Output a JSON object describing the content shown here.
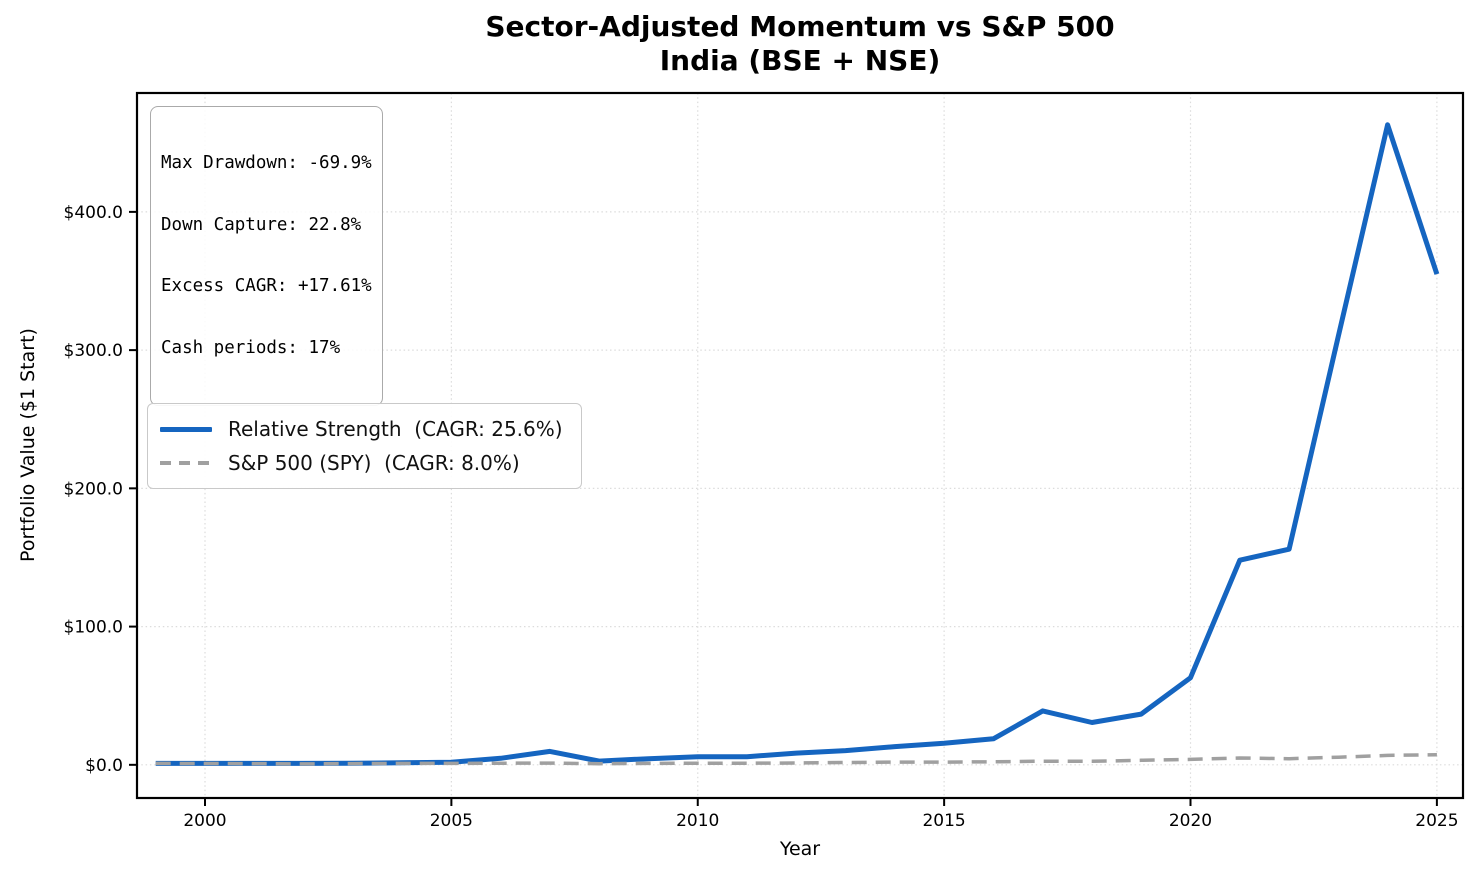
{
  "title": {
    "line1": "Sector-Adjusted Momentum vs S&P 500",
    "line2": "India (BSE + NSE)"
  },
  "colors": {
    "strategy_line": "#1565c0",
    "benchmark_line": "#a0a0a0",
    "gridline": "#dcdcdc",
    "background": "#ffffff"
  },
  "chart_data": {
    "type": "line",
    "title": "Sector-Adjusted Momentum vs S&P 500\nIndia (BSE + NSE)",
    "xlabel": "Year",
    "ylabel": "Portfolio Value ($1 Start)",
    "grid": "dotted",
    "legend_position": "center-left",
    "xlim": [
      1998.62,
      2025.53
    ],
    "ylim": [
      -24,
      486
    ],
    "xticks": [
      2000,
      2005,
      2010,
      2015,
      2020,
      2025
    ],
    "xtick_labels": [
      "2000",
      "2005",
      "2010",
      "2015",
      "2020",
      "2025"
    ],
    "yticks": [
      0,
      100,
      200,
      300,
      400
    ],
    "ytick_labels": [
      "$0.0",
      "$100.0",
      "$200.0",
      "$300.0",
      "$400.0"
    ],
    "x": [
      1999,
      2000,
      2001,
      2002,
      2003,
      2004,
      2005,
      2006,
      2007,
      2008,
      2009,
      2010,
      2011,
      2012,
      2013,
      2014,
      2015,
      2016,
      2017,
      2018,
      2019,
      2020,
      2021,
      2022,
      2023,
      2024,
      2025
    ],
    "series": [
      {
        "name": "Relative Strength",
        "cagr": "25.6%",
        "legend_label": "Relative Strength  (CAGR: 25.6%)",
        "color": "#1565c0",
        "style": "solid",
        "values": [
          1.0,
          1.0,
          1.0,
          1.05,
          1.2,
          1.5,
          1.9,
          4.7,
          9.7,
          2.7,
          4.4,
          5.8,
          5.9,
          8.5,
          10.3,
          13.2,
          15.6,
          18.8,
          39.0,
          30.6,
          36.7,
          63.0,
          148.0,
          156.0,
          310.0,
          463.0,
          355.0
        ]
      },
      {
        "name": "S&P 500 (SPY)",
        "cagr": "8.0%",
        "legend_label": "S&P 500 (SPY)  (CAGR: 8.0%)",
        "color": "#a0a0a0",
        "style": "dashed",
        "values": [
          1.0,
          0.95,
          0.85,
          0.7,
          0.88,
          1.0,
          1.05,
          1.2,
          1.25,
          0.8,
          1.0,
          1.15,
          1.15,
          1.3,
          1.7,
          1.95,
          1.95,
          2.2,
          2.65,
          2.55,
          3.3,
          3.9,
          4.9,
          4.4,
          5.5,
          6.8,
          7.3
        ]
      }
    ],
    "annotations": [
      "Max Drawdown: -69.9%",
      "Down Capture: 22.8%",
      "Excess CAGR: +17.61%",
      "Cash periods: 17%"
    ]
  }
}
